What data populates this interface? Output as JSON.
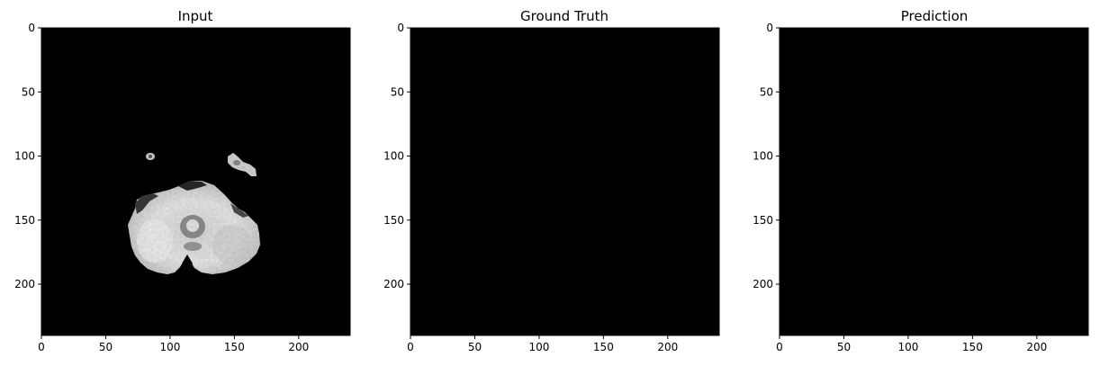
{
  "chart_data": [
    {
      "type": "heatmap",
      "title": "Input",
      "colormap": "gray",
      "xlim": [
        0,
        240
      ],
      "ylim": [
        240,
        0
      ],
      "xticks": [
        0,
        50,
        100,
        150,
        200
      ],
      "yticks": [
        0,
        50,
        100,
        150,
        200
      ],
      "grid": false,
      "content": "brain-slice"
    },
    {
      "type": "heatmap",
      "title": "Ground Truth",
      "colormap": "gray",
      "xlim": [
        0,
        240
      ],
      "ylim": [
        240,
        0
      ],
      "xticks": [
        0,
        50,
        100,
        150,
        200
      ],
      "yticks": [
        0,
        50,
        100,
        150,
        200
      ],
      "grid": false,
      "content": "empty"
    },
    {
      "type": "heatmap",
      "title": "Prediction",
      "colormap": "gray",
      "xlim": [
        0,
        240
      ],
      "ylim": [
        240,
        0
      ],
      "xticks": [
        0,
        50,
        100,
        150,
        200
      ],
      "yticks": [
        0,
        50,
        100,
        150,
        200
      ],
      "grid": false,
      "content": "empty"
    }
  ],
  "colors": {
    "background": "#ffffff",
    "image_fill": "#000000",
    "axis": "#000000"
  }
}
